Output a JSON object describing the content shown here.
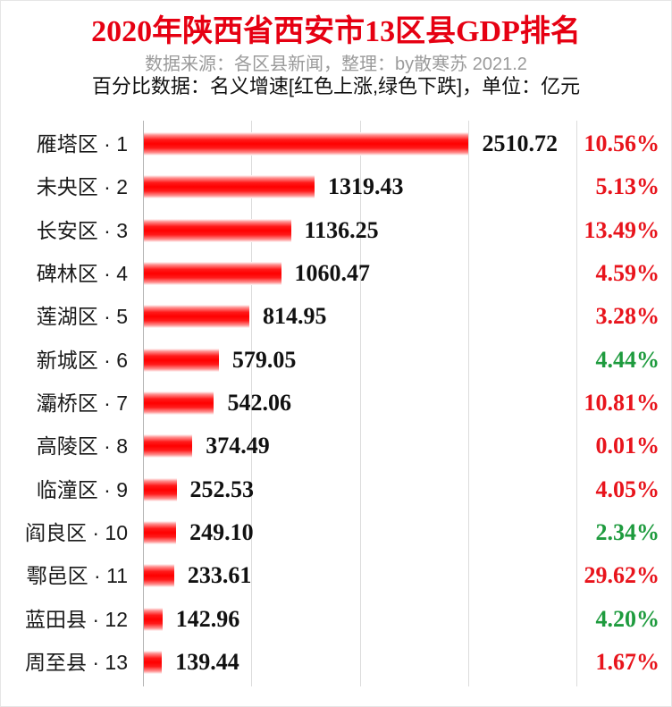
{
  "colors": {
    "title": "#e60012",
    "bar": "#ff0000",
    "growth_up": "#e8141c",
    "growth_down": "#1e9b3e"
  },
  "chart_data": {
    "type": "bar",
    "orientation": "horizontal",
    "title": "2020年陕西省西安市13区县GDP排名",
    "subtitle": [
      "数据来源：各区县新闻，整理：by散寒苏 2021.2",
      "百分比数据：名义增速[红色上涨,绿色下跌]，单位：亿元"
    ],
    "categories": [
      "雁塔区 · 1",
      "未央区 · 2",
      "长安区 · 3",
      "碑林区 · 4",
      "莲湖区 · 5",
      "新城区 · 6",
      "灞桥区 · 7",
      "高陵区 · 8",
      "临潼区 · 9",
      "阎良区 · 10",
      "鄠邑区 · 11",
      "蓝田县 · 12",
      "周至县 · 13"
    ],
    "values": [
      2510.72,
      1319.43,
      1136.25,
      1060.47,
      814.95,
      579.05,
      542.06,
      374.49,
      252.53,
      249.1,
      233.61,
      142.96,
      139.44
    ],
    "growth_labels": [
      "10.56%",
      "5.13%",
      "13.49%",
      "4.59%",
      "3.28%",
      "4.44%",
      "10.81%",
      "0.01%",
      "4.05%",
      "2.34%",
      "29.62%",
      "4.20%",
      "1.67%"
    ],
    "growth_colors": [
      "#e8141c",
      "#e8141c",
      "#e8141c",
      "#e8141c",
      "#e8141c",
      "#1e9b3e",
      "#e8141c",
      "#e8141c",
      "#e8141c",
      "#1e9b3e",
      "#e8141c",
      "#1e9b3e",
      "#e8141c"
    ],
    "xlim": [
      0,
      3350
    ],
    "grid": true
  }
}
